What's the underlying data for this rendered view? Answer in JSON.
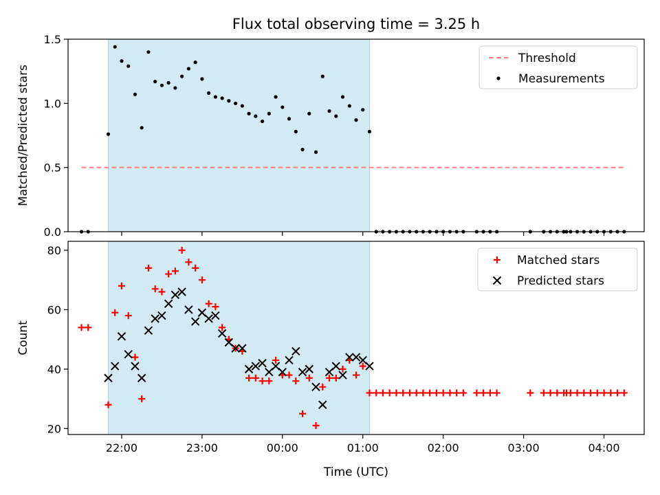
{
  "title": "Flux total observing time = 3.25 h",
  "xlabel": "Time (UTC)",
  "colors": {
    "shade": "#add8e6",
    "threshold": "#ff7f7f",
    "measurements": "#000000",
    "matched": "#ff0000",
    "predicted": "#000000"
  },
  "chart_data": [
    {
      "type": "scatter",
      "ylabel": "Matched/Predicted stars",
      "ylim": [
        0,
        1.5
      ],
      "yticks": [
        "0.0",
        "0.5",
        "1.0",
        "1.5"
      ],
      "xlim": [
        "21:20",
        "04:30"
      ],
      "xtick_labels": [],
      "shaded_interval": [
        "21:50",
        "01:05"
      ],
      "legend": {
        "position": "top-right",
        "entries": [
          "Threshold",
          "Measurements"
        ]
      },
      "threshold": {
        "name": "Threshold",
        "y": 0.5,
        "x": [
          "21:30",
          "04:15"
        ]
      },
      "series": [
        {
          "name": "Measurements",
          "x": [
            "21:30",
            "21:35",
            "21:50",
            "21:55",
            "22:00",
            "22:05",
            "22:10",
            "22:15",
            "22:20",
            "22:25",
            "22:30",
            "22:35",
            "22:40",
            "22:45",
            "22:50",
            "22:55",
            "23:00",
            "23:05",
            "23:10",
            "23:15",
            "23:20",
            "23:25",
            "23:30",
            "23:35",
            "23:40",
            "23:45",
            "23:50",
            "23:55",
            "00:00",
            "00:05",
            "00:10",
            "00:15",
            "00:20",
            "00:25",
            "00:30",
            "00:35",
            "00:40",
            "00:45",
            "00:50",
            "00:55",
            "01:00",
            "01:05",
            "01:10",
            "01:15",
            "01:20",
            "01:25",
            "01:30",
            "01:35",
            "01:40",
            "01:45",
            "01:50",
            "01:55",
            "02:00",
            "02:05",
            "02:10",
            "02:15",
            "02:25",
            "02:30",
            "02:35",
            "02:40",
            "03:05",
            "03:15",
            "03:20",
            "03:25",
            "03:30",
            "03:32",
            "03:35",
            "03:40",
            "03:45",
            "03:50",
            "03:55",
            "04:00",
            "04:05",
            "04:10",
            "04:15"
          ],
          "y": [
            0,
            0,
            0.76,
            1.44,
            1.33,
            1.29,
            1.07,
            0.81,
            1.4,
            1.17,
            1.14,
            1.16,
            1.12,
            1.21,
            1.27,
            1.32,
            1.19,
            1.08,
            1.05,
            1.04,
            1.02,
            1.0,
            0.98,
            0.92,
            0.9,
            0.86,
            0.92,
            1.05,
            0.97,
            0.88,
            0.78,
            0.64,
            0.92,
            0.62,
            1.21,
            0.94,
            0.9,
            1.05,
            0.98,
            0.87,
            0.95,
            0.78,
            0,
            0,
            0,
            0,
            0,
            0,
            0,
            0,
            0,
            0,
            0,
            0,
            0,
            0,
            0,
            0,
            0,
            0,
            0,
            0,
            0,
            0,
            0,
            0,
            0,
            0,
            0,
            0,
            0,
            0,
            0,
            0,
            0
          ]
        }
      ]
    },
    {
      "type": "scatter",
      "ylabel": "Count",
      "ylim": [
        18,
        83
      ],
      "yticks": [
        "20",
        "40",
        "60",
        "80"
      ],
      "xlim": [
        "21:20",
        "04:30"
      ],
      "xtick_labels": [
        "22:00",
        "23:00",
        "00:00",
        "01:00",
        "02:00",
        "03:00",
        "04:00"
      ],
      "shaded_interval": [
        "21:50",
        "01:05"
      ],
      "legend": {
        "position": "top-right",
        "entries": [
          "Matched stars",
          "Predicted stars"
        ]
      },
      "series": [
        {
          "name": "Matched stars",
          "x": [
            "21:30",
            "21:35",
            "21:50",
            "21:55",
            "22:00",
            "22:05",
            "22:10",
            "22:15",
            "22:20",
            "22:25",
            "22:30",
            "22:35",
            "22:40",
            "22:45",
            "22:50",
            "22:55",
            "23:00",
            "23:05",
            "23:10",
            "23:15",
            "23:20",
            "23:25",
            "23:30",
            "23:35",
            "23:40",
            "23:45",
            "23:50",
            "23:55",
            "00:00",
            "00:05",
            "00:10",
            "00:15",
            "00:20",
            "00:25",
            "00:30",
            "00:35",
            "00:40",
            "00:45",
            "00:50",
            "00:55",
            "01:00",
            "01:05",
            "01:10",
            "01:15",
            "01:20",
            "01:25",
            "01:30",
            "01:35",
            "01:40",
            "01:45",
            "01:50",
            "01:55",
            "02:00",
            "02:05",
            "02:10",
            "02:15",
            "02:25",
            "02:30",
            "02:35",
            "02:40",
            "03:05",
            "03:15",
            "03:20",
            "03:25",
            "03:30",
            "03:32",
            "03:35",
            "03:40",
            "03:45",
            "03:50",
            "03:55",
            "04:00",
            "04:05",
            "04:10",
            "04:15"
          ],
          "y": [
            54,
            54,
            28,
            59,
            68,
            58,
            44,
            30,
            74,
            67,
            66,
            72,
            73,
            80,
            76,
            74,
            70,
            62,
            61,
            54,
            50,
            47,
            46,
            37,
            37,
            36,
            36,
            43,
            38,
            38,
            36,
            25,
            37,
            21,
            34,
            37,
            37,
            40,
            43,
            38,
            41,
            32,
            32,
            32,
            32,
            32,
            32,
            32,
            32,
            32,
            32,
            32,
            32,
            32,
            32,
            32,
            32,
            32,
            32,
            32,
            32,
            32,
            32,
            32,
            32,
            32,
            32,
            32,
            32,
            32,
            32,
            32,
            32,
            32,
            32
          ]
        },
        {
          "name": "Predicted stars",
          "x": [
            "21:50",
            "21:55",
            "22:00",
            "22:05",
            "22:10",
            "22:15",
            "22:20",
            "22:25",
            "22:30",
            "22:35",
            "22:40",
            "22:45",
            "22:50",
            "22:55",
            "23:00",
            "23:05",
            "23:10",
            "23:15",
            "23:20",
            "23:25",
            "23:30",
            "23:35",
            "23:40",
            "23:45",
            "23:50",
            "23:55",
            "00:00",
            "00:05",
            "00:10",
            "00:15",
            "00:20",
            "00:25",
            "00:30",
            "00:35",
            "00:40",
            "00:45",
            "00:50",
            "00:55",
            "01:00",
            "01:05"
          ],
          "y": [
            37,
            41,
            51,
            45,
            41,
            37,
            53,
            57,
            58,
            62,
            65,
            66,
            60,
            56,
            59,
            57,
            58,
            52,
            49,
            47,
            47,
            40,
            41,
            42,
            39,
            41,
            39,
            43,
            46,
            39,
            40,
            34,
            28,
            39,
            41,
            38,
            44,
            44,
            43,
            41
          ]
        }
      ]
    }
  ]
}
